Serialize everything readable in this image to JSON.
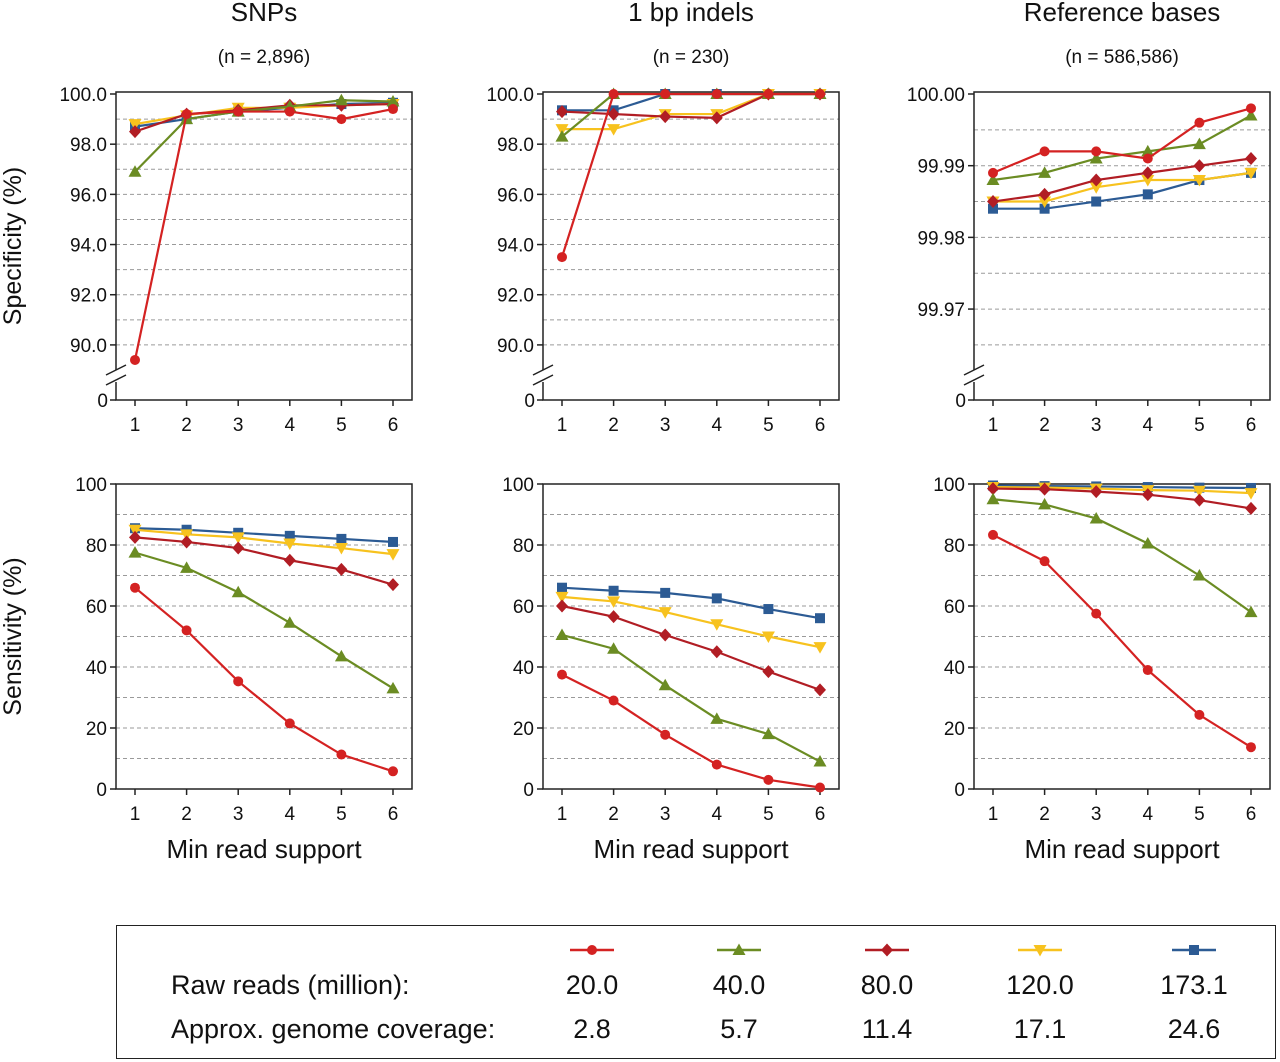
{
  "chart_data": [
    {
      "type": "line",
      "title": "SNPs",
      "subtitle": "(n = 2,896)",
      "ylabel": "Specificity (%)",
      "xlabel": "",
      "axis_break": true,
      "x": [
        1,
        2,
        3,
        4,
        5,
        6
      ],
      "ylim": [
        89.0,
        100.0
      ],
      "yticks": [
        100.0,
        98.0,
        96.0,
        94.0,
        92.0,
        90.0
      ],
      "ytick_labels": [
        "100.0",
        "98.0",
        "96.0",
        "94.0",
        "92.0",
        "90.0"
      ],
      "bottom_label": "0",
      "series": [
        {
          "name": "20.0",
          "values": [
            89.4,
            99.2,
            99.3,
            99.3,
            99.0,
            99.4
          ]
        },
        {
          "name": "40.0",
          "values": [
            96.9,
            99.0,
            99.3,
            99.5,
            99.75,
            99.7
          ]
        },
        {
          "name": "80.0",
          "values": [
            98.5,
            99.2,
            99.35,
            99.55,
            99.55,
            99.6
          ]
        },
        {
          "name": "120.0",
          "values": [
            98.8,
            99.15,
            99.45,
            99.45,
            99.55,
            99.6
          ]
        },
        {
          "name": "173.1",
          "values": [
            98.7,
            99.0,
            99.3,
            99.45,
            99.6,
            99.65
          ]
        }
      ]
    },
    {
      "type": "line",
      "title": "1 bp indels",
      "subtitle": "(n = 230)",
      "ylabel": "",
      "xlabel": "",
      "axis_break": true,
      "x": [
        1,
        2,
        3,
        4,
        5,
        6
      ],
      "ylim": [
        89.0,
        100.0
      ],
      "yticks": [
        100.0,
        98.0,
        96.0,
        94.0,
        92.0,
        90.0
      ],
      "ytick_labels": [
        "100.0",
        "98.0",
        "96.0",
        "94.0",
        "92.0",
        "90.0"
      ],
      "bottom_label": "0",
      "series": [
        {
          "name": "20.0",
          "values": [
            93.5,
            100.0,
            100.0,
            100.0,
            100.0,
            100.0
          ]
        },
        {
          "name": "40.0",
          "values": [
            98.3,
            100.0,
            100.0,
            100.0,
            100.0,
            100.0
          ]
        },
        {
          "name": "80.0",
          "values": [
            99.3,
            99.2,
            99.1,
            99.05,
            100.0,
            100.0
          ]
        },
        {
          "name": "120.0",
          "values": [
            98.6,
            98.6,
            99.2,
            99.2,
            100.0,
            100.0
          ]
        },
        {
          "name": "173.1",
          "values": [
            99.35,
            99.35,
            100.0,
            100.0,
            100.0,
            100.0
          ]
        }
      ]
    },
    {
      "type": "line",
      "title": "Reference bases",
      "subtitle": "(n = 586,586)",
      "ylabel": "",
      "xlabel": "",
      "axis_break": true,
      "x": [
        1,
        2,
        3,
        4,
        5,
        6
      ],
      "ylim": [
        99.9615,
        100.0
      ],
      "yticks": [
        100.0,
        99.99,
        99.98,
        99.97
      ],
      "ytick_labels": [
        "100.00",
        "99.99",
        "99.98",
        "99.97"
      ],
      "bottom_label": "0",
      "series": [
        {
          "name": "20.0",
          "values": [
            99.989,
            99.992,
            99.992,
            99.991,
            99.996,
            99.998
          ]
        },
        {
          "name": "40.0",
          "values": [
            99.988,
            99.989,
            99.991,
            99.992,
            99.993,
            99.997
          ]
        },
        {
          "name": "80.0",
          "values": [
            99.985,
            99.986,
            99.988,
            99.989,
            99.99,
            99.991
          ]
        },
        {
          "name": "120.0",
          "values": [
            99.985,
            99.985,
            99.987,
            99.988,
            99.988,
            99.989
          ]
        },
        {
          "name": "173.1",
          "values": [
            99.984,
            99.984,
            99.985,
            99.986,
            99.988,
            99.989
          ]
        }
      ]
    },
    {
      "type": "line",
      "title": "",
      "subtitle": "",
      "ylabel": "Sensitivity (%)",
      "xlabel": "Min read support",
      "axis_break": false,
      "x": [
        1,
        2,
        3,
        4,
        5,
        6
      ],
      "ylim": [
        0,
        100
      ],
      "yticks": [
        100,
        80,
        60,
        40,
        20,
        0
      ],
      "ytick_labels": [
        "100",
        "80",
        "60",
        "40",
        "20",
        "0"
      ],
      "bottom_label": "",
      "series": [
        {
          "name": "20.0",
          "values": [
            66.0,
            52.0,
            35.3,
            21.5,
            11.3,
            5.8
          ]
        },
        {
          "name": "40.0",
          "values": [
            77.5,
            72.5,
            64.5,
            54.5,
            43.5,
            33.0
          ]
        },
        {
          "name": "80.0",
          "values": [
            82.5,
            81.0,
            79.0,
            75.0,
            72.0,
            67.0
          ]
        },
        {
          "name": "120.0",
          "values": [
            85.0,
            83.5,
            82.5,
            80.5,
            79.0,
            77.0
          ]
        },
        {
          "name": "173.1",
          "values": [
            85.5,
            85.0,
            84.0,
            83.0,
            82.0,
            81.0
          ]
        }
      ]
    },
    {
      "type": "line",
      "title": "",
      "subtitle": "",
      "ylabel": "",
      "xlabel": "Min read support",
      "axis_break": false,
      "x": [
        1,
        2,
        3,
        4,
        5,
        6
      ],
      "ylim": [
        0,
        100
      ],
      "yticks": [
        100,
        80,
        60,
        40,
        20,
        0
      ],
      "ytick_labels": [
        "100",
        "80",
        "60",
        "40",
        "20",
        "0"
      ],
      "bottom_label": "",
      "series": [
        {
          "name": "20.0",
          "values": [
            37.5,
            29.0,
            17.8,
            8.0,
            3.0,
            0.5
          ]
        },
        {
          "name": "40.0",
          "values": [
            50.5,
            46.0,
            34.0,
            23.0,
            18.0,
            9.0
          ]
        },
        {
          "name": "80.0",
          "values": [
            60.0,
            56.5,
            50.5,
            45.0,
            38.5,
            32.5
          ]
        },
        {
          "name": "120.0",
          "values": [
            63.0,
            61.5,
            58.0,
            54.0,
            50.0,
            46.5
          ]
        },
        {
          "name": "173.1",
          "values": [
            66.0,
            65.0,
            64.3,
            62.5,
            59.0,
            56.0
          ]
        }
      ]
    },
    {
      "type": "line",
      "title": "",
      "subtitle": "",
      "ylabel": "",
      "xlabel": "Min read support",
      "axis_break": false,
      "x": [
        1,
        2,
        3,
        4,
        5,
        6
      ],
      "ylim": [
        0,
        100
      ],
      "yticks": [
        100,
        80,
        60,
        40,
        20,
        0
      ],
      "ytick_labels": [
        "100",
        "80",
        "60",
        "40",
        "20",
        "0"
      ],
      "bottom_label": "",
      "series": [
        {
          "name": "20.0",
          "values": [
            83.3,
            74.7,
            57.5,
            39.0,
            24.3,
            13.7
          ]
        },
        {
          "name": "40.0",
          "values": [
            95.0,
            93.3,
            88.7,
            80.5,
            70.0,
            58.0
          ]
        },
        {
          "name": "80.0",
          "values": [
            98.5,
            98.3,
            97.5,
            96.5,
            94.7,
            92.0
          ]
        },
        {
          "name": "120.0",
          "values": [
            99.0,
            98.8,
            98.5,
            98.0,
            97.8,
            97.0
          ]
        },
        {
          "name": "173.1",
          "values": [
            99.5,
            99.3,
            99.2,
            99.0,
            98.8,
            98.7
          ]
        }
      ]
    }
  ],
  "legend": {
    "row1_label": "Raw reads (million):",
    "row2_label": "Approx. genome coverage:",
    "entries": [
      {
        "raw": "20.0",
        "coverage": "2.8",
        "color": "#d42222",
        "marker": "circle"
      },
      {
        "raw": "40.0",
        "coverage": "5.7",
        "color": "#6b8c23",
        "marker": "triangle-up"
      },
      {
        "raw": "80.0",
        "coverage": "11.4",
        "color": "#b11d24",
        "marker": "diamond"
      },
      {
        "raw": "120.0",
        "coverage": "17.1",
        "color": "#f7c21e",
        "marker": "triangle-down"
      },
      {
        "raw": "173.1",
        "coverage": "24.6",
        "color": "#2c5b94",
        "marker": "square"
      }
    ]
  }
}
